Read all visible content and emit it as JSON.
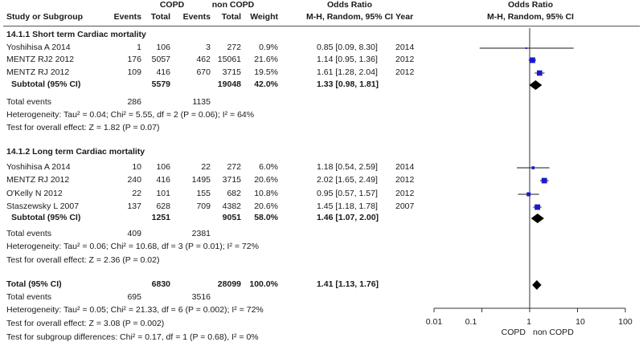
{
  "header": {
    "group1": "COPD",
    "group2": "non COPD",
    "effect_title": "Odds Ratio",
    "effect_method": "M-H, Random, 95% CI",
    "plot_title": "Odds Ratio",
    "plot_method": "M-H, Random, 95% CI",
    "col_study": "Study or Subgroup",
    "col_events1": "Events",
    "col_total1": "Total",
    "col_events2": "Events",
    "col_total2": "Total",
    "col_weight": "Weight",
    "col_year": "Year"
  },
  "subgroups": [
    {
      "title": "14.1.1 Short term Cardiac mortality",
      "subtotal_label": "Subtotal (95% CI)",
      "subtotal_total1": "5579",
      "subtotal_total2": "19048",
      "subtotal_weight": "42.0%",
      "subtotal_ci": "1.33 [0.98, 1.81]",
      "total_events_label": "Total events",
      "total_events1": "286",
      "total_events2": "1135",
      "heterogeneity": "Heterogeneity: Tau² = 0.04; Chi² = 5.55, df = 2 (P = 0.06); I² = 64%",
      "overall_effect": "Test for overall effect: Z = 1.82 (P = 0.07)",
      "studies": [
        {
          "name": "Yoshihisa A 2014",
          "e1": "1",
          "t1": "106",
          "e2": "3",
          "t2": "272",
          "weight": "0.9%",
          "ci": "0.85 [0.09, 8.30]",
          "year": "2014"
        },
        {
          "name": "MENTZ RJ2 2012",
          "e1": "176",
          "t1": "5057",
          "e2": "462",
          "t2": "15061",
          "weight": "21.6%",
          "ci": "1.14 [0.95, 1.36]",
          "year": "2012"
        },
        {
          "name": "MENTZ RJ 2012",
          "e1": "109",
          "t1": "416",
          "e2": "670",
          "t2": "3715",
          "weight": "19.5%",
          "ci": "1.61 [1.28, 2.04]",
          "year": "2012"
        }
      ]
    },
    {
      "title": "14.1.2 Long term Cardiac mortality",
      "subtotal_label": "Subtotal (95% CI)",
      "subtotal_total1": "1251",
      "subtotal_total2": "9051",
      "subtotal_weight": "58.0%",
      "subtotal_ci": "1.46 [1.07, 2.00]",
      "total_events_label": "Total events",
      "total_events1": "409",
      "total_events2": "2381",
      "heterogeneity": "Heterogeneity: Tau² = 0.06; Chi² = 10.68, df = 3 (P = 0.01); I² = 72%",
      "overall_effect": "Test for overall effect: Z = 2.36 (P = 0.02)",
      "studies": [
        {
          "name": "Yoshihisa A 2014",
          "e1": "10",
          "t1": "106",
          "e2": "22",
          "t2": "272",
          "weight": "6.0%",
          "ci": "1.18 [0.54, 2.59]",
          "year": "2014"
        },
        {
          "name": "MENTZ RJ 2012",
          "e1": "240",
          "t1": "416",
          "e2": "1495",
          "t2": "3715",
          "weight": "20.6%",
          "ci": "2.02 [1.65, 2.49]",
          "year": "2012"
        },
        {
          "name": "O'Kelly N 2012",
          "e1": "22",
          "t1": "101",
          "e2": "155",
          "t2": "682",
          "weight": "10.8%",
          "ci": "0.95 [0.57, 1.57]",
          "year": "2012"
        },
        {
          "name": "Staszewsky L 2007",
          "e1": "137",
          "t1": "628",
          "e2": "709",
          "t2": "4382",
          "weight": "20.6%",
          "ci": "1.45 [1.18, 1.78]",
          "year": "2007"
        }
      ]
    }
  ],
  "total": {
    "label": "Total (95% CI)",
    "total1": "6830",
    "total2": "28099",
    "weight": "100.0%",
    "ci": "1.41 [1.13, 1.76]",
    "events_label": "Total events",
    "events1": "695",
    "events2": "3516",
    "heterogeneity": "Heterogeneity: Tau² = 0.05; Chi² = 21.33, df = 6 (P = 0.002); I² = 72%",
    "overall_effect": "Test for overall effect: Z = 3.08 (P = 0.002)",
    "subgroup_diff": "Test for subgroup differences: Chi² = 0.17, df = 1 (P = 0.68), I² = 0%"
  },
  "axis": {
    "ticks": [
      "0.01",
      "0.1",
      "1",
      "10",
      "100"
    ],
    "favours_left": "COPD",
    "favours_right": "non COPD"
  },
  "chart_data": {
    "type": "scatter",
    "scale": "log",
    "xlim": [
      0.01,
      100
    ],
    "tick_values": [
      0.01,
      0.1,
      1,
      10,
      100
    ],
    "reference_line": 1,
    "studies": [
      {
        "name": "Yoshihisa A 2014",
        "subgroup": "14.1.1 Short term Cardiac mortality",
        "or": 0.85,
        "lo": 0.09,
        "hi": 8.3,
        "weight": 0.9
      },
      {
        "name": "MENTZ RJ2 2012",
        "subgroup": "14.1.1 Short term Cardiac mortality",
        "or": 1.14,
        "lo": 0.95,
        "hi": 1.36,
        "weight": 21.6
      },
      {
        "name": "MENTZ RJ 2012",
        "subgroup": "14.1.1 Short term Cardiac mortality",
        "or": 1.61,
        "lo": 1.28,
        "hi": 2.04,
        "weight": 19.5
      },
      {
        "name": "Yoshihisa A 2014",
        "subgroup": "14.1.2 Long term Cardiac mortality",
        "or": 1.18,
        "lo": 0.54,
        "hi": 2.59,
        "weight": 6.0
      },
      {
        "name": "MENTZ RJ 2012",
        "subgroup": "14.1.2 Long term Cardiac mortality",
        "or": 2.02,
        "lo": 1.65,
        "hi": 2.49,
        "weight": 20.6
      },
      {
        "name": "O'Kelly N 2012",
        "subgroup": "14.1.2 Long term Cardiac mortality",
        "or": 0.95,
        "lo": 0.57,
        "hi": 1.57,
        "weight": 10.8
      },
      {
        "name": "Staszewsky L 2007",
        "subgroup": "14.1.2 Long term Cardiac mortality",
        "or": 1.45,
        "lo": 1.18,
        "hi": 1.78,
        "weight": 20.6
      }
    ],
    "summaries": [
      {
        "name": "Subtotal (95% CI)",
        "subgroup": "14.1.1 Short term Cardiac mortality",
        "or": 1.33,
        "lo": 0.98,
        "hi": 1.81
      },
      {
        "name": "Subtotal (95% CI)",
        "subgroup": "14.1.2 Long term Cardiac mortality",
        "or": 1.46,
        "lo": 1.07,
        "hi": 2.0
      },
      {
        "name": "Total (95% CI)",
        "or": 1.41,
        "lo": 1.13,
        "hi": 1.76
      }
    ],
    "colors": {
      "square": "#1a1acc",
      "line": "#1a1a1a",
      "diamond": "#000000",
      "axis": "#333333"
    }
  }
}
